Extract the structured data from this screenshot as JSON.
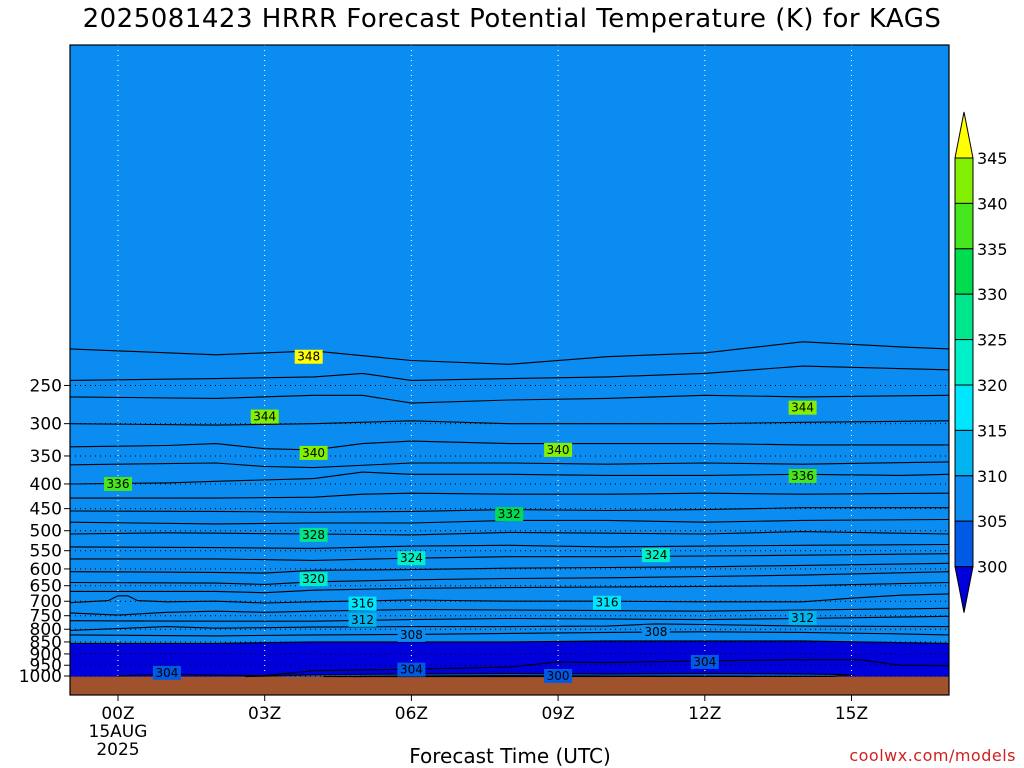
{
  "chart_data": {
    "type": "contour",
    "title": "2025081423 HRRR Forecast Potential Temperature (K) for KAGS",
    "xlabel": "Forecast Time (UTC)",
    "ylabel": "",
    "credit": "coolwx.com/models",
    "x_ticks": [
      "00Z",
      "03Z",
      "06Z",
      "09Z",
      "12Z",
      "15Z"
    ],
    "x_tick_hours": [
      0,
      3,
      6,
      9,
      12,
      15
    ],
    "x_date_lines": [
      "15AUG",
      "2025"
    ],
    "xlim_hours": [
      -1,
      17
    ],
    "y_axis": "Pressure (hPa, log scale, inverted)",
    "y_ticks": [
      250,
      300,
      350,
      400,
      450,
      500,
      550,
      600,
      650,
      700,
      750,
      800,
      850,
      900,
      950,
      1000
    ],
    "ylim": [
      200,
      1025
    ],
    "contour_interval_K": 2,
    "contour_labels": [
      {
        "value": 348,
        "hour": 3.9,
        "pressure": 218
      },
      {
        "value": 344,
        "hour": 14.0,
        "pressure": 278
      },
      {
        "value": 344,
        "hour": 3.0,
        "pressure": 290
      },
      {
        "value": 340,
        "hour": 4.0,
        "pressure": 345
      },
      {
        "value": 340,
        "hour": 9.0,
        "pressure": 340
      },
      {
        "value": 336,
        "hour": 0.0,
        "pressure": 400
      },
      {
        "value": 336,
        "hour": 14.0,
        "pressure": 385
      },
      {
        "value": 332,
        "hour": 8.0,
        "pressure": 462
      },
      {
        "value": 328,
        "hour": 4.0,
        "pressure": 510
      },
      {
        "value": 324,
        "hour": 6.0,
        "pressure": 570
      },
      {
        "value": 324,
        "hour": 11.0,
        "pressure": 562
      },
      {
        "value": 320,
        "hour": 4.0,
        "pressure": 630
      },
      {
        "value": 316,
        "hour": 5.0,
        "pressure": 708
      },
      {
        "value": 316,
        "hour": 10.0,
        "pressure": 705
      },
      {
        "value": 312,
        "hour": 5.0,
        "pressure": 765
      },
      {
        "value": 312,
        "hour": 14.0,
        "pressure": 758
      },
      {
        "value": 308,
        "hour": 6.0,
        "pressure": 822
      },
      {
        "value": 308,
        "hour": 11.0,
        "pressure": 810
      },
      {
        "value": 304,
        "hour": 1.0,
        "pressure": 985
      },
      {
        "value": 304,
        "hour": 6.0,
        "pressure": 970
      },
      {
        "value": 304,
        "hour": 12.0,
        "pressure": 935
      },
      {
        "value": 300,
        "hour": 9.0,
        "pressure": 1000
      }
    ],
    "colorbar": {
      "ticks": [
        300,
        305,
        310,
        315,
        320,
        325,
        330,
        335,
        340,
        345
      ],
      "colors": [
        "#0000dc",
        "#005ae6",
        "#0a8cf0",
        "#00b4f0",
        "#00e6ff",
        "#00f0c8",
        "#00e68c",
        "#00dc50",
        "#46e61e",
        "#82f000",
        "#b4f000",
        "#ffff00"
      ]
    },
    "series": [
      {
        "value": 348,
        "points": [
          [
            -1,
            210
          ],
          [
            2,
            216
          ],
          [
            4,
            212
          ],
          [
            6,
            222
          ],
          [
            8,
            226
          ],
          [
            10,
            218
          ],
          [
            12,
            214
          ],
          [
            14,
            203
          ],
          [
            16,
            208
          ],
          [
            17,
            210
          ]
        ]
      },
      {
        "value": 346,
        "points": [
          [
            -1,
            244
          ],
          [
            2,
            242
          ],
          [
            4,
            240
          ],
          [
            5,
            236
          ],
          [
            6,
            244
          ],
          [
            8,
            242
          ],
          [
            10,
            240
          ],
          [
            12,
            236
          ],
          [
            14,
            228
          ],
          [
            17,
            232
          ]
        ]
      },
      {
        "value": 344,
        "points": [
          [
            -1,
            264
          ],
          [
            2,
            266
          ],
          [
            4,
            262
          ],
          [
            5,
            262
          ],
          [
            6,
            272
          ],
          [
            8,
            268
          ],
          [
            10,
            266
          ],
          [
            12,
            262
          ],
          [
            14,
            264
          ],
          [
            17,
            262
          ]
        ]
      },
      {
        "value": 342,
        "points": [
          [
            -1,
            300
          ],
          [
            2,
            302
          ],
          [
            4,
            300
          ],
          [
            6,
            296
          ],
          [
            8,
            300
          ],
          [
            10,
            300
          ],
          [
            12,
            300
          ],
          [
            14,
            298
          ],
          [
            17,
            296
          ]
        ]
      },
      {
        "value": 340,
        "points": [
          [
            -1,
            335
          ],
          [
            1,
            333
          ],
          [
            2,
            330
          ],
          [
            3,
            338
          ],
          [
            4,
            340
          ],
          [
            5,
            330
          ],
          [
            6,
            326
          ],
          [
            8,
            330
          ],
          [
            10,
            330
          ],
          [
            12,
            330
          ],
          [
            14,
            332
          ],
          [
            17,
            332
          ]
        ]
      },
      {
        "value": 338,
        "points": [
          [
            -1,
            365
          ],
          [
            2,
            362
          ],
          [
            3,
            368
          ],
          [
            4,
            370
          ],
          [
            6,
            362
          ],
          [
            8,
            362
          ],
          [
            10,
            364
          ],
          [
            12,
            362
          ],
          [
            14,
            364
          ],
          [
            17,
            360
          ]
        ]
      },
      {
        "value": 336,
        "points": [
          [
            -1,
            400
          ],
          [
            1,
            398
          ],
          [
            2,
            395
          ],
          [
            4,
            390
          ],
          [
            5,
            378
          ],
          [
            6,
            382
          ],
          [
            8,
            382
          ],
          [
            10,
            384
          ],
          [
            12,
            384
          ],
          [
            14,
            382
          ],
          [
            16,
            384
          ],
          [
            17,
            382
          ]
        ]
      },
      {
        "value": 334,
        "points": [
          [
            -1,
            428
          ],
          [
            2,
            428
          ],
          [
            4,
            426
          ],
          [
            5,
            420
          ],
          [
            6,
            418
          ],
          [
            8,
            420
          ],
          [
            10,
            420
          ],
          [
            12,
            418
          ],
          [
            14,
            420
          ],
          [
            17,
            418
          ]
        ]
      },
      {
        "value": 332,
        "points": [
          [
            -1,
            455
          ],
          [
            2,
            456
          ],
          [
            4,
            458
          ],
          [
            6,
            456
          ],
          [
            8,
            452
          ],
          [
            10,
            454
          ],
          [
            12,
            452
          ],
          [
            14,
            448
          ],
          [
            17,
            448
          ]
        ]
      },
      {
        "value": 330,
        "points": [
          [
            -1,
            480
          ],
          [
            2,
            484
          ],
          [
            4,
            482
          ],
          [
            6,
            482
          ],
          [
            8,
            476
          ],
          [
            10,
            476
          ],
          [
            12,
            480
          ],
          [
            14,
            476
          ],
          [
            17,
            474
          ]
        ]
      },
      {
        "value": 328,
        "points": [
          [
            -1,
            508
          ],
          [
            1,
            505
          ],
          [
            2,
            506
          ],
          [
            4,
            508
          ],
          [
            6,
            510
          ],
          [
            8,
            504
          ],
          [
            10,
            506
          ],
          [
            12,
            508
          ],
          [
            14,
            502
          ],
          [
            17,
            508
          ]
        ]
      },
      {
        "value": 326,
        "points": [
          [
            -1,
            540
          ],
          [
            2,
            542
          ],
          [
            4,
            544
          ],
          [
            6,
            538
          ],
          [
            8,
            536
          ],
          [
            10,
            540
          ],
          [
            12,
            538
          ],
          [
            14,
            536
          ],
          [
            17,
            534
          ]
        ]
      },
      {
        "value": 324,
        "points": [
          [
            -1,
            572
          ],
          [
            2,
            572
          ],
          [
            4,
            576
          ],
          [
            6,
            570
          ],
          [
            8,
            566
          ],
          [
            10,
            566
          ],
          [
            12,
            564
          ],
          [
            14,
            562
          ],
          [
            17,
            558
          ]
        ]
      },
      {
        "value": 322,
        "points": [
          [
            -1,
            608
          ],
          [
            2,
            610
          ],
          [
            3,
            612
          ],
          [
            4,
            604
          ],
          [
            6,
            602
          ],
          [
            8,
            598
          ],
          [
            10,
            596
          ],
          [
            12,
            594
          ],
          [
            14,
            590
          ],
          [
            17,
            584
          ]
        ]
      },
      {
        "value": 320,
        "points": [
          [
            -1,
            640
          ],
          [
            2,
            642
          ],
          [
            3,
            646
          ],
          [
            4,
            638
          ],
          [
            6,
            632
          ],
          [
            8,
            628
          ],
          [
            10,
            626
          ],
          [
            12,
            622
          ],
          [
            14,
            618
          ],
          [
            17,
            608
          ]
        ]
      },
      {
        "value": 318,
        "points": [
          [
            -1,
            668
          ],
          [
            2,
            668
          ],
          [
            3,
            672
          ],
          [
            4,
            664
          ],
          [
            6,
            658
          ],
          [
            8,
            656
          ],
          [
            10,
            654
          ],
          [
            12,
            652
          ],
          [
            14,
            650
          ],
          [
            17,
            640
          ]
        ]
      },
      {
        "value": 316,
        "points": [
          [
            -1,
            705
          ],
          [
            -0.2,
            698
          ],
          [
            0,
            682
          ],
          [
            0.2,
            682
          ],
          [
            0.4,
            698
          ],
          [
            1,
            702
          ],
          [
            2,
            700
          ],
          [
            3,
            706
          ],
          [
            4,
            702
          ],
          [
            6,
            696
          ],
          [
            8,
            700
          ],
          [
            10,
            700
          ],
          [
            12,
            702
          ],
          [
            14,
            702
          ],
          [
            15,
            690
          ],
          [
            16,
            680
          ],
          [
            17,
            676
          ]
        ]
      },
      {
        "value": 314,
        "points": [
          [
            -1,
            740
          ],
          [
            0,
            748
          ],
          [
            1,
            738
          ],
          [
            2,
            734
          ],
          [
            3,
            738
          ],
          [
            4,
            734
          ],
          [
            6,
            728
          ],
          [
            8,
            730
          ],
          [
            10,
            732
          ],
          [
            12,
            734
          ],
          [
            14,
            730
          ],
          [
            17,
            724
          ]
        ]
      },
      {
        "value": 312,
        "points": [
          [
            -1,
            768
          ],
          [
            2,
            770
          ],
          [
            4,
            770
          ],
          [
            6,
            764
          ],
          [
            8,
            760
          ],
          [
            10,
            762
          ],
          [
            12,
            764
          ],
          [
            14,
            760
          ],
          [
            17,
            752
          ]
        ]
      },
      {
        "value": 310,
        "points": [
          [
            -1,
            805
          ],
          [
            1,
            790
          ],
          [
            2,
            796
          ],
          [
            4,
            792
          ],
          [
            6,
            790
          ],
          [
            8,
            790
          ],
          [
            10,
            788
          ],
          [
            11,
            780
          ],
          [
            12,
            782
          ],
          [
            14,
            788
          ],
          [
            17,
            790
          ]
        ]
      },
      {
        "value": 308,
        "points": [
          [
            -1,
            822
          ],
          [
            2,
            826
          ],
          [
            4,
            822
          ],
          [
            6,
            820
          ],
          [
            8,
            816
          ],
          [
            10,
            812
          ],
          [
            12,
            810
          ],
          [
            14,
            812
          ],
          [
            16,
            818
          ],
          [
            17,
            822
          ]
        ]
      },
      {
        "value": 306,
        "points": [
          [
            -1,
            856
          ],
          [
            2,
            856
          ],
          [
            4,
            850
          ],
          [
            6,
            850
          ],
          [
            8,
            850
          ],
          [
            10,
            846
          ],
          [
            12,
            846
          ],
          [
            14,
            846
          ],
          [
            17,
            856
          ]
        ]
      },
      {
        "value": 304,
        "points": [
          [
            0,
            1000
          ],
          [
            1,
            990
          ],
          [
            2,
            996
          ],
          [
            3,
            998
          ],
          [
            4,
            975
          ],
          [
            6,
            968
          ],
          [
            8,
            958
          ],
          [
            9,
            935
          ],
          [
            10,
            938
          ],
          [
            12,
            930
          ],
          [
            14,
            925
          ],
          [
            15.2,
            926
          ],
          [
            16,
            950
          ],
          [
            17,
            952
          ]
        ]
      },
      {
        "value": 302,
        "points": [
          [
            2.6,
            1003
          ],
          [
            4,
            994
          ],
          [
            6,
            990
          ],
          [
            8,
            988
          ],
          [
            10,
            990
          ],
          [
            12,
            988
          ],
          [
            14,
            990
          ],
          [
            15,
            994
          ],
          [
            14.6,
            1002
          ],
          [
            4.2,
            1003
          ]
        ]
      },
      {
        "value": 300,
        "points": [
          [
            4.8,
            1003
          ],
          [
            6,
            1000
          ],
          [
            8,
            998
          ],
          [
            10,
            1000
          ],
          [
            12,
            1000
          ],
          [
            13,
            1002
          ],
          [
            12.8,
            1003
          ]
        ]
      }
    ]
  }
}
